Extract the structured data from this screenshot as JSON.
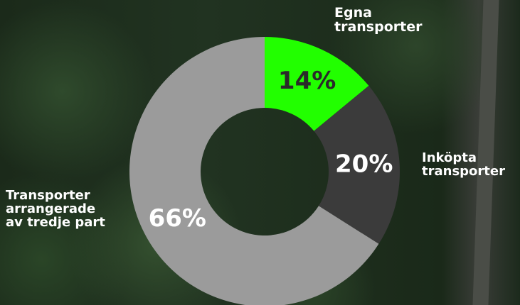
{
  "chart_data": {
    "type": "donut",
    "categories": [
      "Egna\ntransporter",
      "Inköpta\ntransporter",
      "Transporter\narrangerade\nav tredje part"
    ],
    "values": [
      14,
      20,
      66
    ],
    "value_labels": [
      "14%",
      "20%",
      "66%"
    ],
    "colors": [
      "#22ff00",
      "#3b3b3b",
      "#9b9b9b"
    ]
  }
}
